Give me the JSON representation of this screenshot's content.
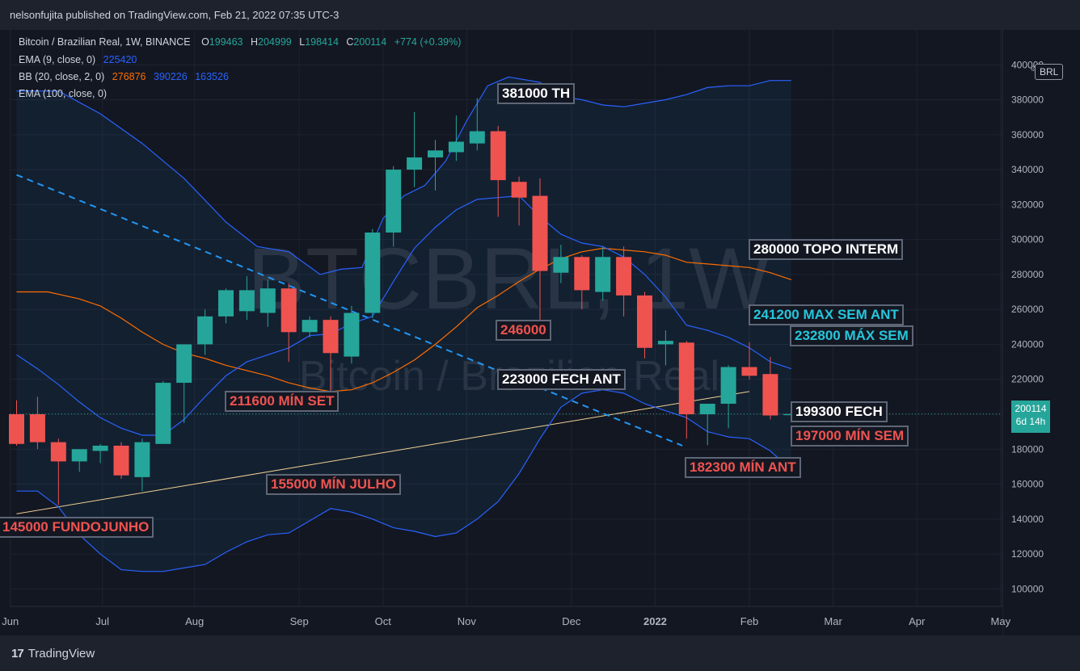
{
  "header": {
    "publisher_line": "nelsonfujita published on TradingView.com, Feb 21, 2022 07:35 UTC-3"
  },
  "legend": {
    "symbol": "Bitcoin / Brazilian Real, 1W, BINANCE",
    "ohlc": [
      {
        "key": "O",
        "value": "199463"
      },
      {
        "key": "H",
        "value": "204999"
      },
      {
        "key": "L",
        "value": "198414"
      },
      {
        "key": "C",
        "value": "200114"
      }
    ],
    "change": "+774 (+0.39%)",
    "ema9": {
      "name": "EMA (9, close, 0)",
      "value": "225420",
      "color": "#2962ff"
    },
    "bb": {
      "name": "BB (20, close, 2, 0)",
      "basis": "276876",
      "upper": "390226",
      "lower": "163526",
      "basis_color": "#ff6d00",
      "band_color": "#2962ff"
    },
    "ema100": {
      "name": "EMA (100, close, 0)"
    }
  },
  "watermark": {
    "line1": "BTCBRL, 1W",
    "line2": "Bitcoin / Brazilian Real"
  },
  "currency_button": "BRL",
  "current_price": {
    "value": "200114",
    "countdown": "6d 14h"
  },
  "footer": {
    "brand": "TradingView",
    "logo": "17"
  },
  "chart_data": {
    "type": "candlestick",
    "ylim": [
      90000,
      420000
    ],
    "y_ticks": [
      100000,
      120000,
      140000,
      160000,
      180000,
      200000,
      220000,
      240000,
      260000,
      280000,
      300000,
      320000,
      340000,
      360000,
      380000,
      400000
    ],
    "x_ticks": [
      {
        "label": "Jun",
        "t": -0.3
      },
      {
        "label": "Jul",
        "t": 4.1
      },
      {
        "label": "Aug",
        "t": 8.5
      },
      {
        "label": "Sep",
        "t": 13.5
      },
      {
        "label": "Oct",
        "t": 17.5
      },
      {
        "label": "Nov",
        "t": 21.5
      },
      {
        "label": "Dec",
        "t": 26.5
      },
      {
        "label": "2022",
        "t": 30.5
      },
      {
        "label": "Feb",
        "t": 35.0
      },
      {
        "label": "Mar",
        "t": 39.0
      },
      {
        "label": "Apr",
        "t": 43.0
      },
      {
        "label": "May",
        "t": 47.0
      }
    ],
    "colors": {
      "up": "#26a69a",
      "down": "#ef5350"
    },
    "candles": [
      {
        "t": 0,
        "o": 200000,
        "h": 208000,
        "l": 182000,
        "c": 183000
      },
      {
        "t": 1,
        "o": 200000,
        "h": 210000,
        "l": 180000,
        "c": 184000
      },
      {
        "t": 2,
        "o": 184000,
        "h": 186000,
        "l": 148000,
        "c": 173000
      },
      {
        "t": 3,
        "o": 173000,
        "h": 180000,
        "l": 167000,
        "c": 180000
      },
      {
        "t": 4,
        "o": 179000,
        "h": 183000,
        "l": 172000,
        "c": 182000
      },
      {
        "t": 5,
        "o": 182000,
        "h": 184000,
        "l": 163000,
        "c": 165000
      },
      {
        "t": 6,
        "o": 164000,
        "h": 186000,
        "l": 156000,
        "c": 184000
      },
      {
        "t": 7,
        "o": 183000,
        "h": 219000,
        "l": 183000,
        "c": 218000
      },
      {
        "t": 8,
        "o": 218000,
        "h": 240000,
        "l": 195000,
        "c": 240000
      },
      {
        "t": 9,
        "o": 240000,
        "h": 260000,
        "l": 234000,
        "c": 256000
      },
      {
        "t": 10,
        "o": 256000,
        "h": 272000,
        "l": 252000,
        "c": 271000
      },
      {
        "t": 11,
        "o": 259000,
        "h": 279000,
        "l": 254000,
        "c": 271000
      },
      {
        "t": 12,
        "o": 258000,
        "h": 277000,
        "l": 250000,
        "c": 272000
      },
      {
        "t": 13,
        "o": 272000,
        "h": 275000,
        "l": 230000,
        "c": 247000
      },
      {
        "t": 14,
        "o": 247000,
        "h": 256000,
        "l": 244000,
        "c": 254000
      },
      {
        "t": 15,
        "o": 254000,
        "h": 256000,
        "l": 213000,
        "c": 235000
      },
      {
        "t": 16,
        "o": 233000,
        "h": 262000,
        "l": 229000,
        "c": 258000
      },
      {
        "t": 17,
        "o": 258000,
        "h": 306000,
        "l": 255000,
        "c": 304000
      },
      {
        "t": 18,
        "o": 304000,
        "h": 342000,
        "l": 296000,
        "c": 340000
      },
      {
        "t": 19,
        "o": 340000,
        "h": 373000,
        "l": 330000,
        "c": 347000
      },
      {
        "t": 20,
        "o": 347000,
        "h": 357000,
        "l": 328000,
        "c": 351000
      },
      {
        "t": 21,
        "o": 350000,
        "h": 371000,
        "l": 345000,
        "c": 356000
      },
      {
        "t": 22,
        "o": 355000,
        "h": 381000,
        "l": 351000,
        "c": 362000
      },
      {
        "t": 23,
        "o": 362000,
        "h": 365000,
        "l": 313000,
        "c": 334000
      },
      {
        "t": 24,
        "o": 333000,
        "h": 336000,
        "l": 308000,
        "c": 324000
      },
      {
        "t": 25,
        "o": 325000,
        "h": 335000,
        "l": 251000,
        "c": 282000
      },
      {
        "t": 26,
        "o": 281000,
        "h": 297000,
        "l": 275000,
        "c": 290000
      },
      {
        "t": 27,
        "o": 290000,
        "h": 291000,
        "l": 260000,
        "c": 271000
      },
      {
        "t": 28,
        "o": 270000,
        "h": 296000,
        "l": 265000,
        "c": 290000
      },
      {
        "t": 29,
        "o": 290000,
        "h": 296000,
        "l": 256000,
        "c": 268000
      },
      {
        "t": 30,
        "o": 268000,
        "h": 270000,
        "l": 232000,
        "c": 238000
      },
      {
        "t": 31,
        "o": 240000,
        "h": 248000,
        "l": 228000,
        "c": 242000
      },
      {
        "t": 32,
        "o": 241000,
        "h": 242000,
        "l": 186000,
        "c": 200000
      },
      {
        "t": 33,
        "o": 200000,
        "h": 206000,
        "l": 182300,
        "c": 206000
      },
      {
        "t": 34,
        "o": 206000,
        "h": 228000,
        "l": 192000,
        "c": 227000
      },
      {
        "t": 35,
        "o": 227000,
        "h": 241200,
        "l": 220000,
        "c": 222000
      },
      {
        "t": 36,
        "o": 223000,
        "h": 232800,
        "l": 197000,
        "c": 199300
      },
      {
        "t": 37,
        "o": 199463,
        "h": 204999,
        "l": 198414,
        "c": 200114
      }
    ],
    "bb_upper": [
      [
        0,
        385000
      ],
      [
        2,
        385000
      ],
      [
        4,
        372000
      ],
      [
        6,
        355000
      ],
      [
        8,
        335000
      ],
      [
        10,
        310000
      ],
      [
        11.5,
        296000
      ],
      [
        13,
        293000
      ],
      [
        14.5,
        280000
      ],
      [
        15.5,
        283000
      ],
      [
        16.5,
        284000
      ],
      [
        17.5,
        312000
      ],
      [
        18.5,
        325000
      ],
      [
        19.5,
        331000
      ],
      [
        20.5,
        345000
      ],
      [
        21.5,
        368000
      ],
      [
        22.5,
        388000
      ],
      [
        23.5,
        393000
      ],
      [
        25,
        390000
      ],
      [
        26,
        382000
      ],
      [
        27,
        380000
      ],
      [
        28,
        377000
      ],
      [
        29,
        376000
      ],
      [
        30,
        378000
      ],
      [
        31,
        380000
      ],
      [
        32,
        383000
      ],
      [
        33,
        387000
      ],
      [
        34,
        388000
      ],
      [
        35,
        388000
      ],
      [
        36,
        391000
      ],
      [
        37,
        391000
      ]
    ],
    "bb_basis": [
      [
        0,
        270000
      ],
      [
        1.5,
        270000
      ],
      [
        3,
        266000
      ],
      [
        4,
        262000
      ],
      [
        5,
        255000
      ],
      [
        6,
        247000
      ],
      [
        7,
        240000
      ],
      [
        8,
        235000
      ],
      [
        9,
        232000
      ],
      [
        10,
        228000
      ],
      [
        11,
        225000
      ],
      [
        12,
        222000
      ],
      [
        13,
        218000
      ],
      [
        14,
        215000
      ],
      [
        15,
        213000
      ],
      [
        16,
        214000
      ],
      [
        17,
        218000
      ],
      [
        18,
        224000
      ],
      [
        19,
        231000
      ],
      [
        20,
        240000
      ],
      [
        21,
        250000
      ],
      [
        22,
        261000
      ],
      [
        23,
        268000
      ],
      [
        24,
        276000
      ],
      [
        25,
        283000
      ],
      [
        26,
        289000
      ],
      [
        27,
        293000
      ],
      [
        28,
        295000
      ],
      [
        29,
        294000
      ],
      [
        30,
        293000
      ],
      [
        31,
        291000
      ],
      [
        32,
        287000
      ],
      [
        33,
        286000
      ],
      [
        34,
        285000
      ],
      [
        35,
        284000
      ],
      [
        36,
        281000
      ],
      [
        37,
        277000
      ]
    ],
    "bb_lower": [
      [
        0,
        156000
      ],
      [
        1,
        156000
      ],
      [
        2,
        147000
      ],
      [
        3,
        131000
      ],
      [
        4,
        120000
      ],
      [
        5,
        111000
      ],
      [
        6,
        110000
      ],
      [
        7,
        110000
      ],
      [
        8,
        112000
      ],
      [
        9,
        114000
      ],
      [
        10,
        121000
      ],
      [
        11,
        127000
      ],
      [
        12,
        131000
      ],
      [
        13,
        132000
      ],
      [
        14,
        139000
      ],
      [
        15,
        146000
      ],
      [
        16,
        144000
      ],
      [
        17,
        140000
      ],
      [
        18,
        135000
      ],
      [
        19,
        133000
      ],
      [
        20,
        130000
      ],
      [
        21,
        132000
      ],
      [
        22,
        140000
      ],
      [
        23,
        150000
      ],
      [
        24,
        166000
      ],
      [
        25,
        186000
      ],
      [
        26,
        204000
      ],
      [
        27,
        212000
      ],
      [
        28,
        214000
      ],
      [
        29,
        212000
      ],
      [
        30,
        206000
      ],
      [
        31,
        202000
      ],
      [
        32,
        198000
      ],
      [
        33,
        190000
      ],
      [
        34,
        187000
      ],
      [
        35,
        186000
      ],
      [
        36,
        179000
      ],
      [
        37,
        168000
      ]
    ],
    "ema9": [
      [
        0,
        234000
      ],
      [
        1,
        226000
      ],
      [
        2,
        217000
      ],
      [
        3,
        207000
      ],
      [
        4,
        198000
      ],
      [
        5,
        192000
      ],
      [
        6,
        188000
      ],
      [
        7,
        188000
      ],
      [
        8,
        197000
      ],
      [
        9,
        210000
      ],
      [
        10,
        222000
      ],
      [
        11,
        230000
      ],
      [
        12,
        234000
      ],
      [
        13,
        238000
      ],
      [
        14,
        245000
      ],
      [
        15,
        246000
      ],
      [
        16,
        252000
      ],
      [
        17,
        256000
      ],
      [
        18,
        276000
      ],
      [
        19,
        295000
      ],
      [
        20,
        307000
      ],
      [
        21,
        317000
      ],
      [
        22,
        323000
      ],
      [
        23,
        324000
      ],
      [
        24,
        325000
      ],
      [
        25,
        313000
      ],
      [
        26,
        303000
      ],
      [
        27,
        298000
      ],
      [
        28,
        296000
      ],
      [
        29,
        290000
      ],
      [
        30,
        280000
      ],
      [
        31,
        267000
      ],
      [
        32,
        251000
      ],
      [
        33,
        248000
      ],
      [
        34,
        244000
      ],
      [
        35,
        238000
      ],
      [
        36,
        230000
      ],
      [
        37,
        226000
      ]
    ],
    "trendline_dashed": {
      "from": [
        0,
        337000
      ],
      "to": [
        31.8,
        182000
      ],
      "color": "#2196f3"
    },
    "trendline_yellow": {
      "from": [
        0,
        143000
      ],
      "to": [
        35,
        213000
      ],
      "color": "#f2d094"
    },
    "current_price_line": 200114,
    "annotations": [
      {
        "text": "381000 TH",
        "color": "#ffffff"
      },
      {
        "text": "280000 TOPO INTERM",
        "color": "#ffffff"
      },
      {
        "text": "241200 MAX SEM ANT",
        "color": "#26c6da"
      },
      {
        "text": "232800 MÁX SEM",
        "color": "#26c6da"
      },
      {
        "text": "246000",
        "color": "#ef5350"
      },
      {
        "text": "223000 FECH ANT",
        "color": "#ffffff"
      },
      {
        "text": "211600 MÍN SET",
        "color": "#ef5350"
      },
      {
        "text": "199300 FECH",
        "color": "#ffffff"
      },
      {
        "text": "197000 MÍN SEM",
        "color": "#ef5350"
      },
      {
        "text": "182300 MÍN ANT",
        "color": "#ef5350"
      },
      {
        "text": "155000 MÍN JULHO",
        "color": "#ef5350"
      },
      {
        "text": "145000 FUNDOJUNHO",
        "color": "#ef5350"
      }
    ]
  }
}
